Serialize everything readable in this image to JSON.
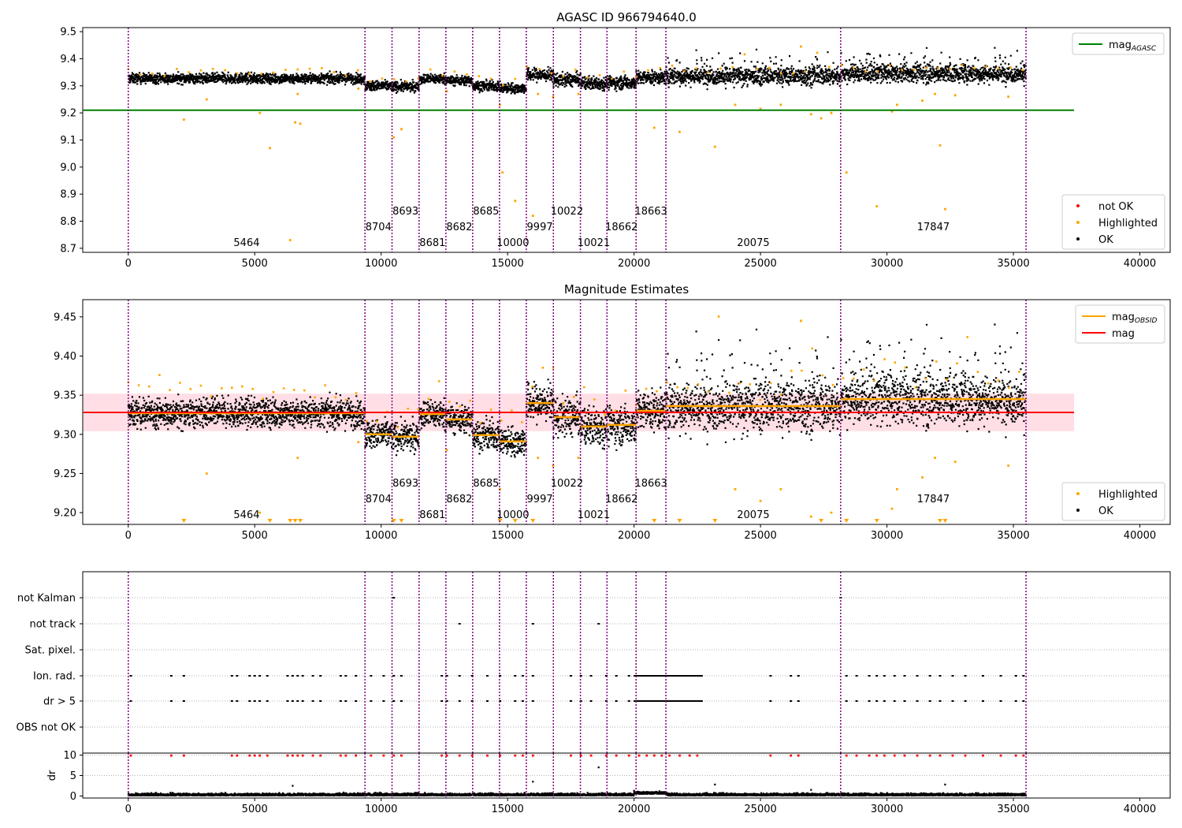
{
  "title": "AGASC ID 966794640.0",
  "colors": {
    "ok": "#000000",
    "highlighted": "#ffa500",
    "not_ok": "#ff0000",
    "agasc_line": "#008000",
    "mean_line": "#ff0000",
    "mean_band": "#ffc0cb",
    "obsid_mag": "#ffa500",
    "boundary": "#800080"
  },
  "obsids": [
    {
      "id": "5464",
      "start": 0,
      "end": 9360,
      "mag": 9.327,
      "row": 0
    },
    {
      "id": "8704",
      "start": 9360,
      "end": 10430,
      "mag": 9.3,
      "row": 1
    },
    {
      "id": "8693",
      "start": 10430,
      "end": 11500,
      "mag": 9.297,
      "row": 2
    },
    {
      "id": "8681",
      "start": 11500,
      "end": 12560,
      "mag": 9.326,
      "row": 0
    },
    {
      "id": "8682",
      "start": 12560,
      "end": 13620,
      "mag": 9.319,
      "row": 1
    },
    {
      "id": "8685",
      "start": 13620,
      "end": 14680,
      "mag": 9.299,
      "row": 2
    },
    {
      "id": "10000",
      "start": 14680,
      "end": 15740,
      "mag": 9.291,
      "row": 0
    },
    {
      "id": "9997",
      "start": 15740,
      "end": 16810,
      "mag": 9.34,
      "row": 1
    },
    {
      "id": "10022",
      "start": 16810,
      "end": 17880,
      "mag": 9.322,
      "row": 2
    },
    {
      "id": "10021",
      "start": 17880,
      "end": 18930,
      "mag": 9.31,
      "row": 0
    },
    {
      "id": "18662",
      "start": 18930,
      "end": 20080,
      "mag": 9.312,
      "row": 1
    },
    {
      "id": "18663",
      "start": 20080,
      "end": 21260,
      "mag": 9.33,
      "row": 2
    },
    {
      "id": "20075",
      "start": 21260,
      "end": 28170,
      "mag": 9.336,
      "row": 0
    },
    {
      "id": "17847",
      "start": 28170,
      "end": 35500,
      "mag": 9.345,
      "row": 1
    }
  ],
  "panels": [
    {
      "name": "agasc",
      "title": "",
      "xlim": [
        -1800,
        41200
      ],
      "ylim": [
        8.685,
        9.515
      ],
      "xticks": [
        0,
        5000,
        10000,
        15000,
        20000,
        25000,
        30000,
        35000,
        40000
      ],
      "yticks": [
        8.7,
        8.8,
        8.9,
        9.0,
        9.1,
        9.2,
        9.3,
        9.4,
        9.5
      ],
      "mag_agasc": 9.21,
      "legend_top": [
        {
          "label": "mag",
          "sub": "AGASC",
          "color": "#008000"
        }
      ],
      "legend_bottom": [
        {
          "label": "not OK",
          "color": "#ff0000"
        },
        {
          "label": "Highlighted",
          "color": "#ffa500"
        },
        {
          "label": "OK",
          "color": "#000000"
        }
      ]
    },
    {
      "name": "magnitude",
      "title": "Magnitude Estimates",
      "xlim": [
        -1800,
        41200
      ],
      "ylim": [
        9.185,
        9.472
      ],
      "xticks": [
        0,
        5000,
        10000,
        15000,
        20000,
        25000,
        30000,
        35000,
        40000
      ],
      "yticks": [
        9.2,
        9.25,
        9.3,
        9.35,
        9.4,
        9.45
      ],
      "mean_mag": 9.328,
      "mean_band": [
        9.304,
        9.352
      ],
      "legend_top": [
        {
          "label": "mag",
          "sub": "OBSID",
          "color": "#ffa500"
        },
        {
          "label": "mag",
          "sub": "",
          "color": "#ff0000"
        }
      ],
      "legend_bottom": [
        {
          "label": "Highlighted",
          "color": "#ffa500"
        },
        {
          "label": "OK",
          "color": "#000000"
        }
      ]
    },
    {
      "name": "flags",
      "title": "",
      "xlim": [
        -1800,
        41200
      ],
      "categories": [
        "not Kalman",
        "not track",
        "Sat. pixel.",
        "Ion. rad.",
        "dr > 5",
        "OBS not OK"
      ]
    },
    {
      "name": "dr",
      "ylabel": "dr",
      "xlim": [
        -1800,
        41200
      ],
      "ylim": [
        -0.5,
        10.5
      ],
      "yticks": [
        0,
        5,
        10
      ],
      "xticks": [
        0,
        5000,
        10000,
        15000,
        20000,
        25000,
        30000,
        35000,
        40000
      ]
    }
  ],
  "outliers_agasc": [
    [
      2200,
      9.175
    ],
    [
      3100,
      9.25
    ],
    [
      5200,
      9.2
    ],
    [
      5600,
      9.07
    ],
    [
      6400,
      8.73
    ],
    [
      6600,
      9.165
    ],
    [
      6800,
      9.16
    ],
    [
      6700,
      9.27
    ],
    [
      9100,
      9.29
    ],
    [
      10500,
      9.11
    ],
    [
      10800,
      9.14
    ],
    [
      12600,
      9.28
    ],
    [
      14700,
      9.23
    ],
    [
      14800,
      8.98
    ],
    [
      15300,
      8.875
    ],
    [
      16000,
      8.82
    ],
    [
      16200,
      9.27
    ],
    [
      16800,
      9.26
    ],
    [
      17800,
      9.27
    ],
    [
      20800,
      9.145
    ],
    [
      21800,
      9.13
    ],
    [
      23200,
      9.075
    ],
    [
      24000,
      9.23
    ],
    [
      25000,
      9.215
    ],
    [
      25800,
      9.23
    ],
    [
      26600,
      9.445
    ],
    [
      27000,
      9.195
    ],
    [
      27400,
      9.18
    ],
    [
      27800,
      9.2
    ],
    [
      28400,
      8.98
    ],
    [
      29600,
      8.855
    ],
    [
      30200,
      9.205
    ],
    [
      30400,
      9.23
    ],
    [
      31400,
      9.245
    ],
    [
      31900,
      9.27
    ],
    [
      32100,
      9.08
    ],
    [
      32300,
      8.845
    ],
    [
      32700,
      9.265
    ],
    [
      34800,
      9.26
    ]
  ],
  "flags_points": {
    "not Kalman": [
      10500,
      28170
    ],
    "not track": [
      13100,
      16000,
      18600
    ],
    "Sat. pixel.": [],
    "Ion. rad.": [
      100,
      1700,
      2200,
      4100,
      4300,
      4800,
      5000,
      5200,
      5500,
      6300,
      6500,
      6700,
      6900,
      7300,
      7600,
      8400,
      8600,
      9000,
      9600,
      10100,
      10500,
      10800,
      12400,
      12600,
      13100,
      13600,
      14200,
      14700,
      15300,
      15600,
      16000,
      17500,
      17900,
      18300,
      18900,
      19300,
      19800,
      20200,
      20500,
      20800,
      21100,
      21400,
      21800,
      22200,
      22500,
      25400,
      26200,
      26500,
      28400,
      28800,
      29300,
      29600,
      29900,
      30300,
      30700,
      31200,
      31700,
      32100,
      32600,
      33100,
      33800,
      34500,
      35100,
      35400
    ],
    "dr > 5": [
      100,
      1700,
      2200,
      4100,
      4300,
      4800,
      5000,
      5200,
      5500,
      6300,
      6500,
      6700,
      6900,
      7300,
      7600,
      8400,
      8600,
      9000,
      9600,
      10100,
      10500,
      10800,
      12400,
      12600,
      13100,
      13600,
      14200,
      14700,
      15300,
      15600,
      16000,
      17500,
      17900,
      18300,
      18900,
      19300,
      19800,
      20200,
      20500,
      20800,
      21100,
      21400,
      21800,
      22200,
      22500,
      25400,
      26200,
      26500,
      28400,
      28800,
      29300,
      29600,
      29900,
      30300,
      30700,
      31200,
      31700,
      32100,
      32600,
      33100,
      33800,
      34500,
      35100,
      35400
    ],
    "OBS not OK": []
  },
  "dr_extra": [
    [
      6500,
      2.5
    ],
    [
      16000,
      3.5
    ],
    [
      18600,
      7.0
    ],
    [
      23200,
      2.8
    ],
    [
      32300,
      2.8
    ],
    [
      27000,
      1.5
    ],
    [
      20000,
      1.3
    ]
  ]
}
